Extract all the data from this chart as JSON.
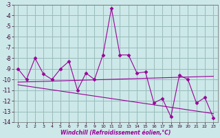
{
  "xlabel": "Windchill (Refroidissement éolien,°C)",
  "x_values": [
    0,
    1,
    2,
    3,
    4,
    5,
    6,
    7,
    8,
    9,
    10,
    11,
    12,
    13,
    14,
    15,
    16,
    17,
    18,
    19,
    20,
    21,
    22,
    23
  ],
  "y_main": [
    -9.0,
    -10.0,
    -8.0,
    -9.5,
    -10.0,
    -9.0,
    -8.3,
    -11.0,
    -9.4,
    -10.0,
    -7.7,
    -3.3,
    -7.7,
    -7.7,
    -9.4,
    -9.3,
    -12.2,
    -11.8,
    -13.5,
    -9.6,
    -10.0,
    -12.2,
    -11.7,
    -13.6
  ],
  "trend1_x": [
    0,
    23
  ],
  "trend1_y": [
    -10.25,
    -9.7
  ],
  "trend2_x": [
    0,
    23
  ],
  "trend2_y": [
    -10.5,
    -13.2
  ],
  "line_color": "#990099",
  "bg_color": "#cce8e8",
  "grid_color": "#99bbbb",
  "ylim": [
    -14,
    -3
  ],
  "xlim": [
    -0.5,
    23.5
  ],
  "yticks": [
    -14,
    -13,
    -12,
    -11,
    -10,
    -9,
    -8,
    -7,
    -6,
    -5,
    -4,
    -3
  ],
  "xticks": [
    0,
    1,
    2,
    3,
    4,
    5,
    6,
    7,
    8,
    9,
    10,
    11,
    12,
    13,
    14,
    15,
    16,
    17,
    18,
    19,
    20,
    21,
    22,
    23
  ]
}
